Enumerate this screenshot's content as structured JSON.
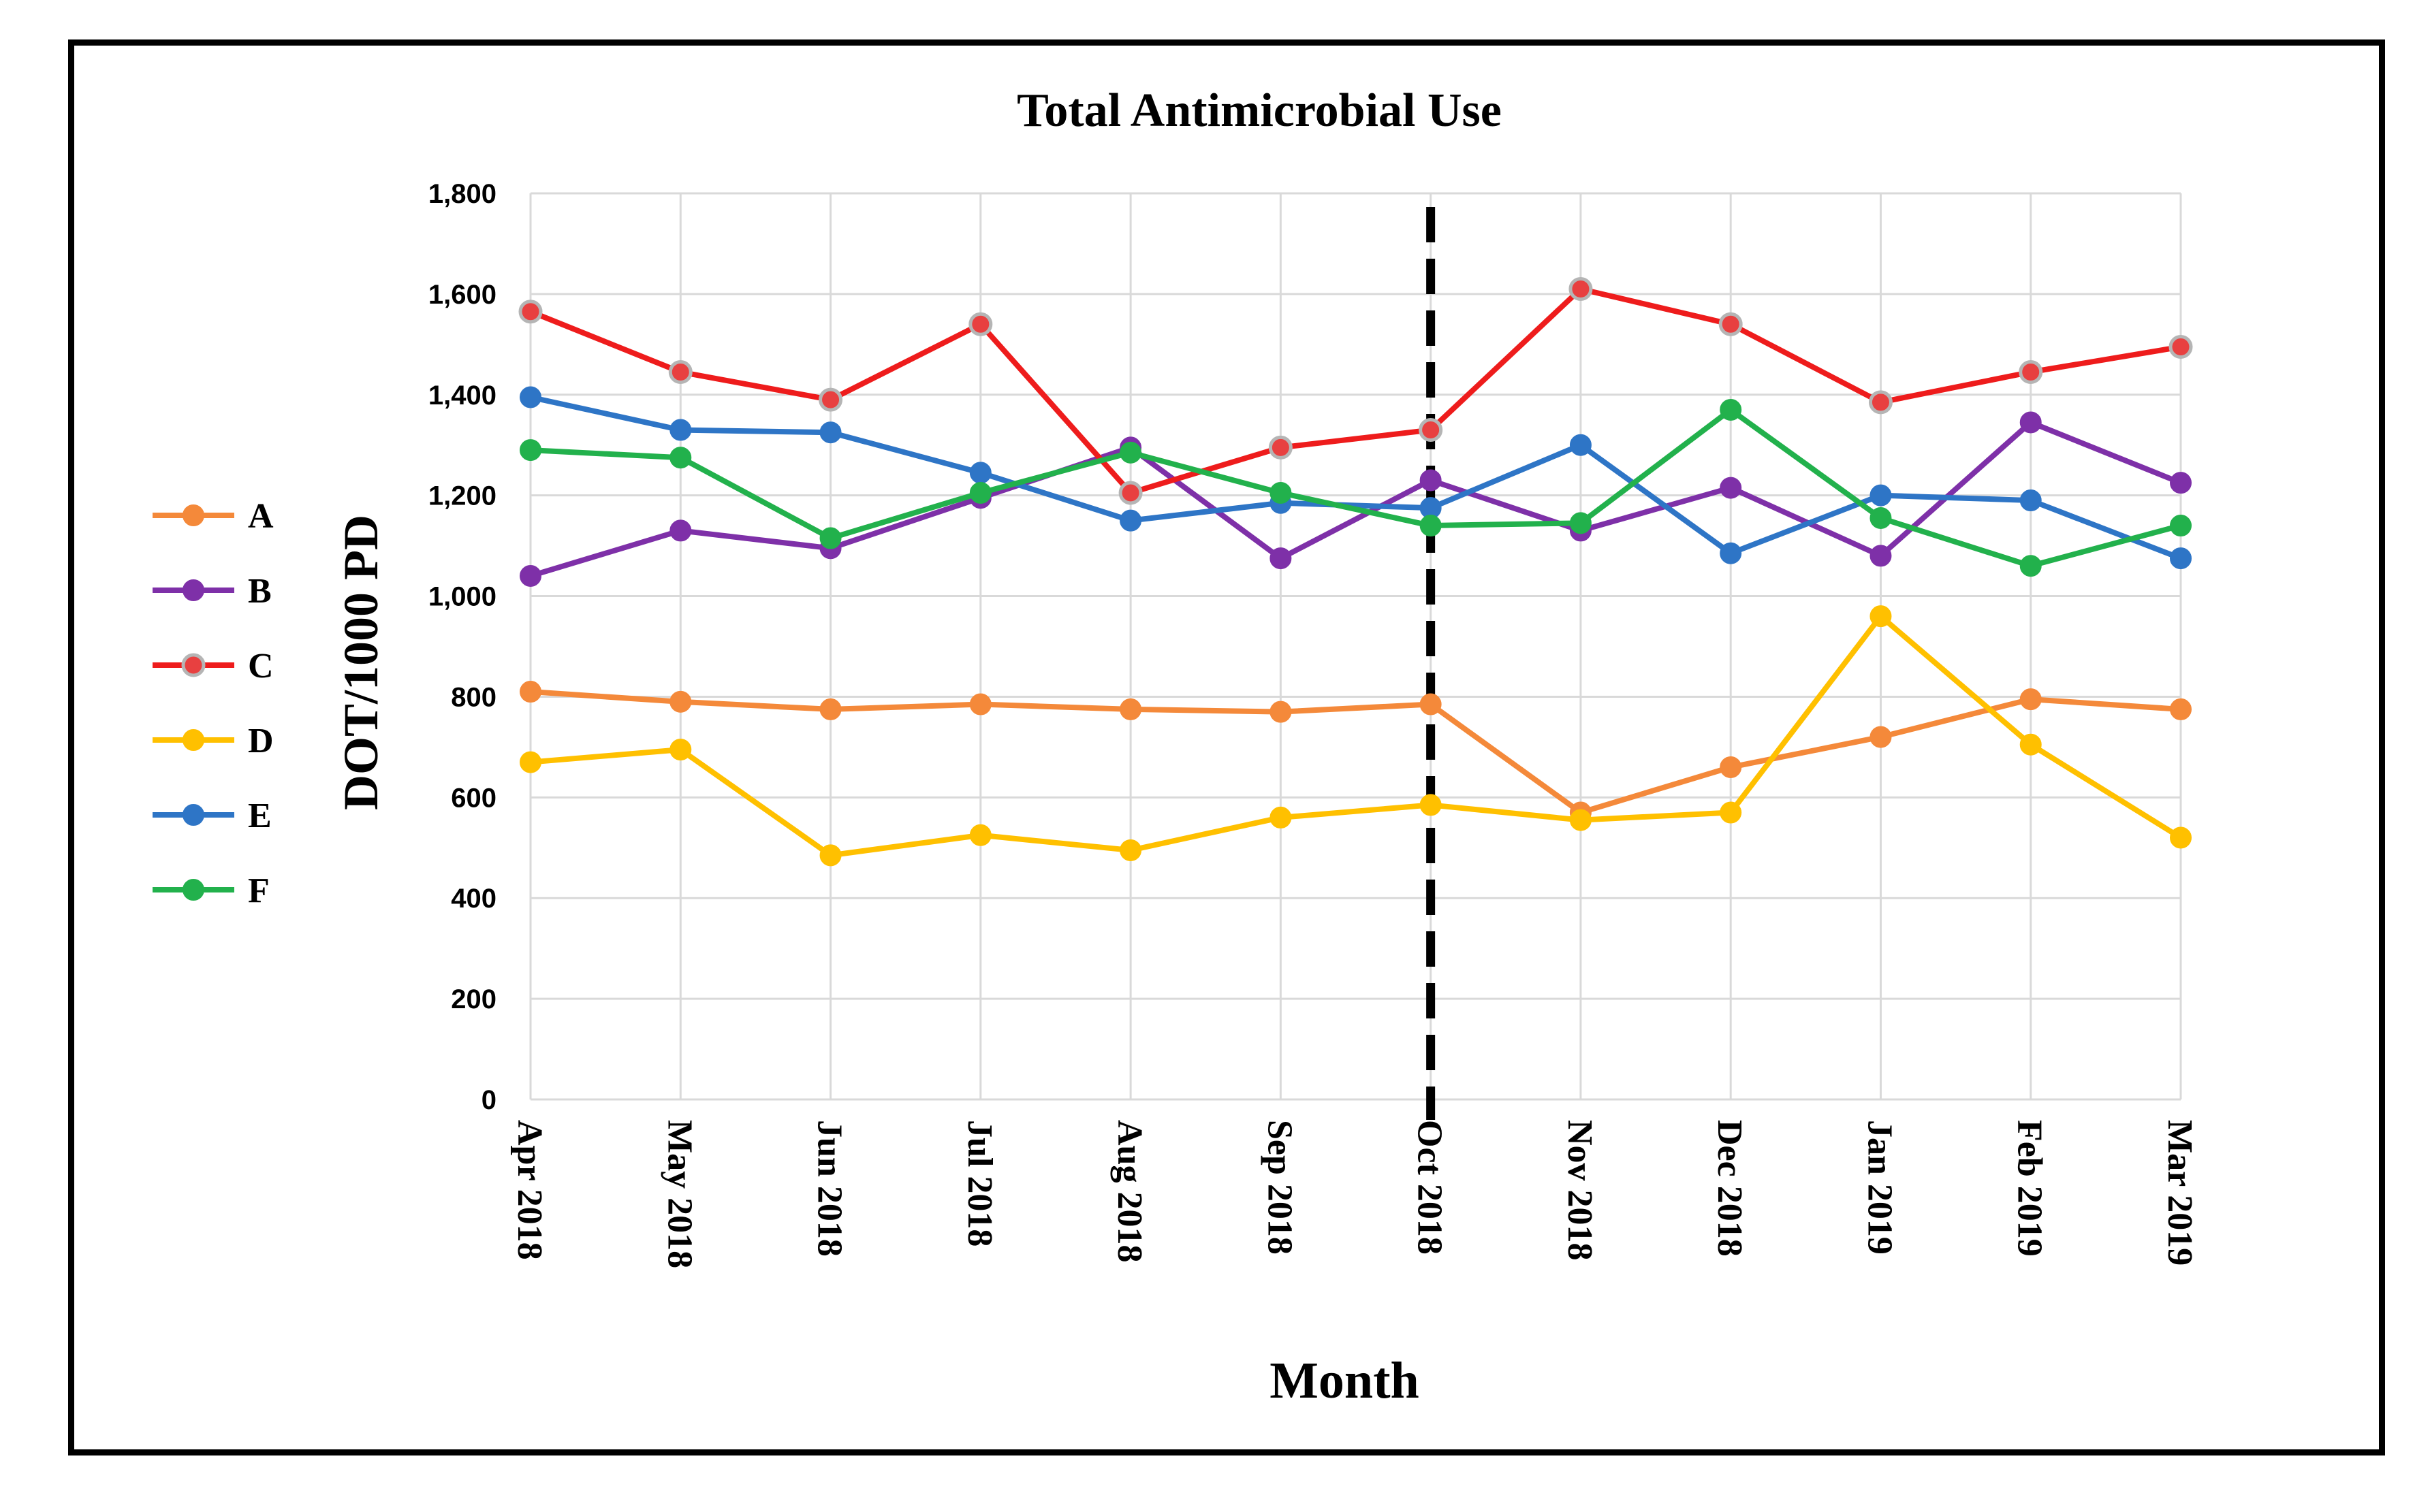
{
  "chart_data": {
    "type": "line",
    "title": "Total Antimicrobial Use",
    "xlabel": "Month",
    "ylabel": "DOT/1000 PD",
    "ylim": [
      0,
      1800
    ],
    "yticks": [
      0,
      200,
      400,
      600,
      800,
      1000,
      1200,
      1400,
      1600,
      1800
    ],
    "ytick_labels": [
      "0",
      "200",
      "400",
      "600",
      "800",
      "1,000",
      "1,200",
      "1,400",
      "1,600",
      "1,800"
    ],
    "grid": true,
    "legend_position": "left",
    "categories": [
      "Apr 2018",
      "May 2018",
      "Jun 2018",
      "Jul 2018",
      "Aug 2018",
      "Sep 2018",
      "Oct 2018",
      "Nov 2018",
      "Dec 2018",
      "Jan 2019",
      "Feb 2019",
      "Mar 2019"
    ],
    "marker_line": {
      "category": "Oct 2018",
      "style": "dashed",
      "color": "#000000"
    },
    "series": [
      {
        "name": "A",
        "color": "#F4893A",
        "values": [
          810,
          790,
          775,
          785,
          775,
          770,
          785,
          570,
          660,
          720,
          795,
          775
        ]
      },
      {
        "name": "B",
        "color": "#7E30A8",
        "values": [
          1040,
          1130,
          1095,
          1195,
          1295,
          1075,
          1230,
          1130,
          1215,
          1080,
          1345,
          1225
        ]
      },
      {
        "name": "C",
        "color": "#EE1C1C",
        "marker_fill": "#E84040",
        "marker_stroke": "#B5B5B5",
        "values": [
          1565,
          1445,
          1390,
          1540,
          1205,
          1295,
          1330,
          1610,
          1540,
          1385,
          1445,
          1495
        ]
      },
      {
        "name": "D",
        "color": "#FFC000",
        "values": [
          670,
          695,
          485,
          525,
          495,
          560,
          585,
          555,
          570,
          960,
          705,
          520
        ]
      },
      {
        "name": "E",
        "color": "#2E75C6",
        "values": [
          1395,
          1330,
          1325,
          1245,
          1150,
          1185,
          1175,
          1300,
          1085,
          1200,
          1190,
          1075
        ]
      },
      {
        "name": "F",
        "color": "#22B14C",
        "values": [
          1290,
          1275,
          1115,
          1205,
          1285,
          1205,
          1140,
          1145,
          1370,
          1155,
          1060,
          1140
        ]
      }
    ]
  }
}
